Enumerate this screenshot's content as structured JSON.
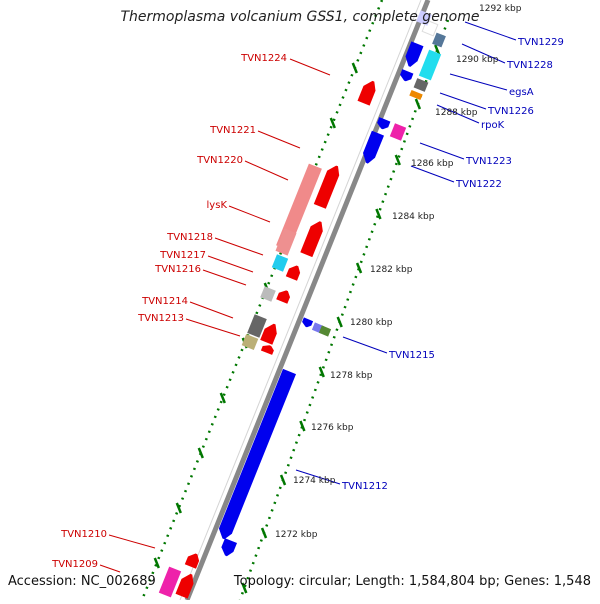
{
  "title": "Thermoplasma volcanium GSS1, complete genome",
  "footer": {
    "accession": "Accession: NC_002689",
    "topology": "Topology: circular; Length: 1,584,804 bp; Genes: 1,548"
  },
  "colors": {
    "label_left": "#cc0000",
    "label_right": "#0000bb",
    "strand_plus": "#ee0000",
    "strand_minus": "#0000ee",
    "backbone": "#888888",
    "tick_dots": "#007700"
  },
  "scale_labels": [
    "1292 kbp",
    "1290 kbp",
    "1288 kbp",
    "1286 kbp",
    "1284 kbp",
    "1282 kbp",
    "1280 kbp",
    "1278 kbp",
    "1276 kbp",
    "1274 kbp",
    "1272 kbp"
  ],
  "left_labels": [
    "TVN1224",
    "TVN1221",
    "TVN1220",
    "lysK",
    "TVN1218",
    "TVN1217",
    "TVN1216",
    "TVN1214",
    "TVN1213",
    "TVN1210",
    "TVN1209"
  ],
  "right_labels": [
    "TVN1229",
    "TVN1228",
    "egsA",
    "TVN1226",
    "rpoK",
    "TVN1223",
    "TVN1222",
    "TVN1215",
    "TVN1212"
  ]
}
